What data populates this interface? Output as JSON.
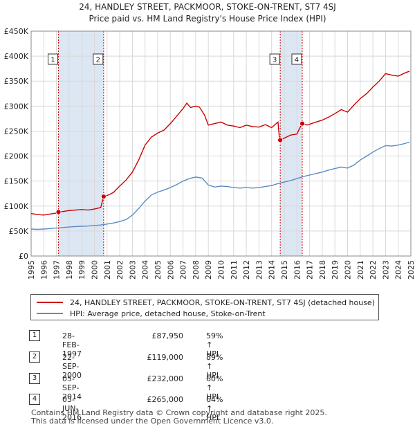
{
  "title": "24, HANDLEY STREET, PACKMOOR, STOKE-ON-TRENT, ST7 4SJ",
  "subtitle": "Price paid vs. HM Land Registry's House Price Index (HPI)",
  "colors": {
    "property": "#cc0000",
    "hpi": "#5b8bc4",
    "shade": "#dde6f3",
    "vline": "#cc0000"
  },
  "legend": {
    "property": "24, HANDLEY STREET, PACKMOOR, STOKE-ON-TRENT, ST7 4SJ (detached house)",
    "hpi": "HPI: Average price, detached house, Stoke-on-Trent"
  },
  "transactions": [
    {
      "num": "1",
      "date": "28-FEB-1997",
      "price": "£87,950",
      "hpi": "59% ↑ HPI"
    },
    {
      "num": "2",
      "date": "22-SEP-2000",
      "price": "£119,000",
      "hpi": "89% ↑ HPI"
    },
    {
      "num": "3",
      "date": "05-SEP-2014",
      "price": "£232,000",
      "hpi": "60% ↑ HPI"
    },
    {
      "num": "4",
      "date": "03-JUN-2016",
      "price": "£265,000",
      "hpi": "64% ↑ HPI"
    }
  ],
  "footer": {
    "line1": "Contains HM Land Registry data © Crown copyright and database right 2025.",
    "line2": "This data is licensed under the Open Government Licence v3.0."
  },
  "chart_data": {
    "type": "line",
    "title": "24, HANDLEY STREET, PACKMOOR, STOKE-ON-TRENT, ST7 4SJ",
    "xlim": [
      1995,
      2025
    ],
    "ylim": [
      0,
      450000
    ],
    "yticks": [
      0,
      50000,
      100000,
      150000,
      200000,
      250000,
      300000,
      350000,
      400000,
      450000
    ],
    "ytick_labels": [
      "£0",
      "£50K",
      "£100K",
      "£150K",
      "£200K",
      "£250K",
      "£300K",
      "£350K",
      "£400K",
      "£450K"
    ],
    "xticks": [
      "1995",
      "1996",
      "1997",
      "1998",
      "1999",
      "2000",
      "2001",
      "2002",
      "2003",
      "2004",
      "2005",
      "2006",
      "2007",
      "2008",
      "2009",
      "2010",
      "2011",
      "2012",
      "2013",
      "2014",
      "2015",
      "2016",
      "2017",
      "2018",
      "2019",
      "2020",
      "2021",
      "2022",
      "2023",
      "2024",
      "2025"
    ],
    "shaded_ranges": [
      [
        1997.16,
        2000.73
      ],
      [
        2014.68,
        2016.42
      ]
    ],
    "series": [
      {
        "name": "24, HANDLEY STREET, PACKMOOR, STOKE-ON-TRENT, ST7 4SJ (detached house)",
        "points": [
          [
            1995.0,
            85000
          ],
          [
            1995.5,
            83000
          ],
          [
            1996.0,
            82000
          ],
          [
            1996.5,
            84000
          ],
          [
            1997.0,
            86000
          ],
          [
            1997.16,
            87950
          ],
          [
            1997.5,
            89000
          ],
          [
            1998.0,
            91000
          ],
          [
            1998.5,
            92000
          ],
          [
            1999.0,
            93000
          ],
          [
            1999.5,
            92000
          ],
          [
            2000.0,
            94000
          ],
          [
            2000.5,
            97000
          ],
          [
            2000.73,
            119000
          ],
          [
            2001.0,
            121000
          ],
          [
            2001.5,
            127000
          ],
          [
            2002.0,
            140000
          ],
          [
            2002.5,
            152000
          ],
          [
            2003.0,
            168000
          ],
          [
            2003.5,
            192000
          ],
          [
            2004.0,
            222000
          ],
          [
            2004.5,
            238000
          ],
          [
            2005.0,
            246000
          ],
          [
            2005.5,
            252000
          ],
          [
            2006.0,
            265000
          ],
          [
            2006.5,
            280000
          ],
          [
            2007.0,
            295000
          ],
          [
            2007.3,
            306000
          ],
          [
            2007.6,
            297000
          ],
          [
            2008.0,
            300000
          ],
          [
            2008.3,
            298000
          ],
          [
            2008.7,
            282000
          ],
          [
            2009.0,
            262000
          ],
          [
            2009.5,
            265000
          ],
          [
            2010.0,
            268000
          ],
          [
            2010.5,
            262000
          ],
          [
            2011.0,
            260000
          ],
          [
            2011.5,
            257000
          ],
          [
            2012.0,
            262000
          ],
          [
            2012.5,
            259000
          ],
          [
            2013.0,
            258000
          ],
          [
            2013.5,
            263000
          ],
          [
            2014.0,
            257000
          ],
          [
            2014.5,
            268000
          ],
          [
            2014.6,
            240000
          ],
          [
            2014.68,
            232000
          ],
          [
            2015.0,
            236000
          ],
          [
            2015.5,
            242000
          ],
          [
            2016.0,
            244000
          ],
          [
            2016.2,
            255000
          ],
          [
            2016.42,
            265000
          ],
          [
            2016.8,
            262000
          ],
          [
            2017.5,
            268000
          ],
          [
            2018.0,
            272000
          ],
          [
            2018.5,
            278000
          ],
          [
            2019.0,
            285000
          ],
          [
            2019.5,
            293000
          ],
          [
            2020.0,
            288000
          ],
          [
            2020.5,
            302000
          ],
          [
            2021.0,
            315000
          ],
          [
            2021.5,
            325000
          ],
          [
            2022.0,
            338000
          ],
          [
            2022.5,
            350000
          ],
          [
            2023.0,
            365000
          ],
          [
            2023.5,
            362000
          ],
          [
            2024.0,
            360000
          ],
          [
            2024.5,
            366000
          ],
          [
            2024.9,
            370000
          ]
        ]
      },
      {
        "name": "HPI: Average price, detached house, Stoke-on-Trent",
        "points": [
          [
            1995.0,
            54000
          ],
          [
            1995.5,
            53500
          ],
          [
            1996.0,
            54000
          ],
          [
            1996.5,
            55000
          ],
          [
            1997.0,
            56000
          ],
          [
            1997.5,
            57000
          ],
          [
            1998.0,
            58000
          ],
          [
            1998.5,
            59000
          ],
          [
            1999.0,
            59500
          ],
          [
            1999.5,
            60000
          ],
          [
            2000.0,
            61000
          ],
          [
            2000.5,
            62000
          ],
          [
            2001.0,
            64000
          ],
          [
            2001.5,
            66000
          ],
          [
            2002.0,
            69000
          ],
          [
            2002.5,
            73000
          ],
          [
            2003.0,
            82000
          ],
          [
            2003.5,
            95000
          ],
          [
            2004.0,
            110000
          ],
          [
            2004.5,
            122000
          ],
          [
            2005.0,
            128000
          ],
          [
            2005.5,
            132000
          ],
          [
            2006.0,
            137000
          ],
          [
            2006.5,
            143000
          ],
          [
            2007.0,
            150000
          ],
          [
            2007.5,
            155000
          ],
          [
            2008.0,
            158000
          ],
          [
            2008.5,
            156000
          ],
          [
            2009.0,
            142000
          ],
          [
            2009.5,
            138000
          ],
          [
            2010.0,
            140000
          ],
          [
            2010.5,
            139000
          ],
          [
            2011.0,
            137000
          ],
          [
            2011.5,
            136000
          ],
          [
            2012.0,
            137000
          ],
          [
            2012.5,
            136000
          ],
          [
            2013.0,
            137000
          ],
          [
            2013.5,
            139000
          ],
          [
            2014.0,
            141000
          ],
          [
            2014.5,
            145000
          ],
          [
            2015.0,
            148000
          ],
          [
            2015.5,
            151000
          ],
          [
            2016.0,
            155000
          ],
          [
            2016.5,
            159000
          ],
          [
            2017.0,
            162000
          ],
          [
            2017.5,
            165000
          ],
          [
            2018.0,
            168000
          ],
          [
            2018.5,
            172000
          ],
          [
            2019.0,
            175000
          ],
          [
            2019.5,
            178000
          ],
          [
            2020.0,
            176000
          ],
          [
            2020.5,
            182000
          ],
          [
            2021.0,
            192000
          ],
          [
            2021.5,
            200000
          ],
          [
            2022.0,
            208000
          ],
          [
            2022.5,
            215000
          ],
          [
            2023.0,
            221000
          ],
          [
            2023.5,
            220000
          ],
          [
            2024.0,
            222000
          ],
          [
            2024.5,
            225000
          ],
          [
            2024.9,
            228000
          ]
        ]
      }
    ],
    "markers": [
      {
        "label": "1",
        "x": 1997.16,
        "y": 87950
      },
      {
        "label": "2",
        "x": 2000.73,
        "y": 119000
      },
      {
        "label": "3",
        "x": 2014.68,
        "y": 232000
      },
      {
        "label": "4",
        "x": 2016.42,
        "y": 265000
      }
    ]
  }
}
